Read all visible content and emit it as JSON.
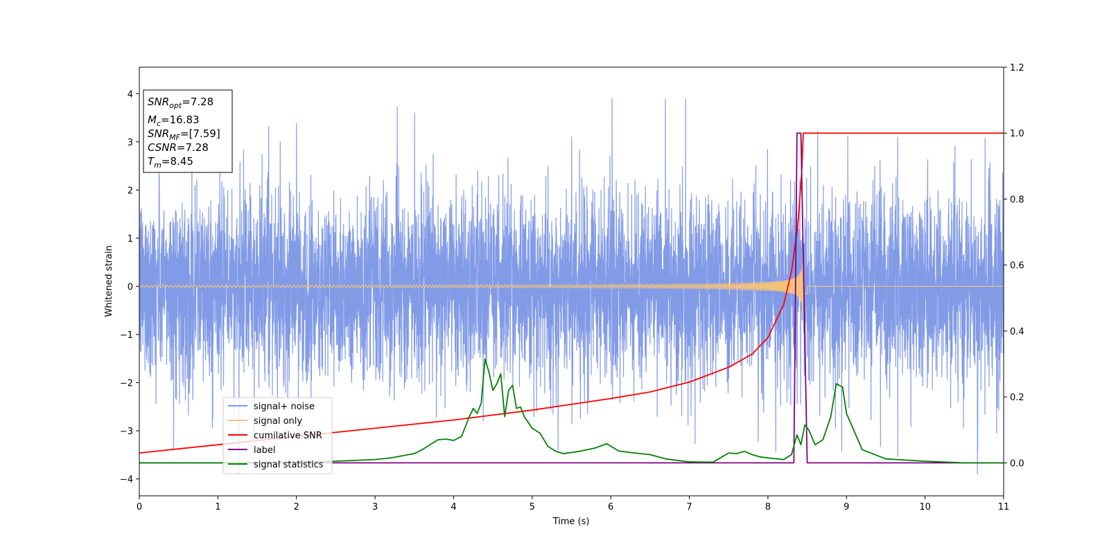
{
  "chart_data": {
    "type": "line",
    "xlabel": "Time (s)",
    "ylabel": "Whitened strain",
    "xlim": [
      0,
      11
    ],
    "ylim_left": [
      -4.35,
      4.55
    ],
    "ylim_right": [
      -0.1,
      1.2
    ],
    "x_ticks": [
      "0",
      "1",
      "2",
      "3",
      "4",
      "5",
      "6",
      "7",
      "8",
      "9",
      "10",
      "11"
    ],
    "y_ticks_left": [
      "−4",
      "−3",
      "−2",
      "−1",
      "0",
      "1",
      "2",
      "3",
      "4"
    ],
    "y_ticks_right": [
      "0.0",
      "0.2",
      "0.4",
      "0.6",
      "0.8",
      "1.0",
      "1.2"
    ],
    "info_box": [
      {
        "base": "SNR",
        "sub": "opt",
        "value": "=7.28"
      },
      {
        "base": "M",
        "sub": "c",
        "value": "=16.83"
      },
      {
        "base": "SNR",
        "sub": "MF",
        "value": "=[7.59]"
      },
      {
        "base": "CSNR",
        "sub": "",
        "value": "=7.28"
      },
      {
        "base": "T",
        "sub": "m",
        "value": "=8.45"
      }
    ],
    "legend_position": "lower-left",
    "series": [
      {
        "name": "signal+ noise",
        "color": "#7b96e6",
        "axis": "left",
        "description_values": {
          "amplitude_range": [
            -3.9,
            3.9
          ],
          "duration": [
            0,
            11
          ]
        }
      },
      {
        "name": "signal only",
        "color": "#f5c27a",
        "axis": "left",
        "chirp": {
          "start_amplitude": 0.02,
          "peak_amplitude": 0.75,
          "merger_time": 8.45,
          "end_time": 8.5
        }
      },
      {
        "name": "cumilative SNR",
        "color": "#ff0000",
        "axis": "right",
        "x": [
          0,
          1,
          2,
          3,
          4,
          5,
          6,
          6.5,
          7,
          7.5,
          7.8,
          8.0,
          8.2,
          8.3,
          8.38,
          8.43,
          8.45,
          11
        ],
        "y": [
          0.03,
          0.055,
          0.08,
          0.105,
          0.13,
          0.16,
          0.195,
          0.215,
          0.245,
          0.29,
          0.33,
          0.38,
          0.48,
          0.58,
          0.72,
          0.88,
          1.0,
          1.0
        ]
      },
      {
        "name": "label",
        "color": "#800080",
        "axis": "right",
        "x": [
          0,
          8.33,
          8.37,
          8.42,
          8.5,
          11
        ],
        "y": [
          0.0,
          0.0,
          1.0,
          1.0,
          0.0,
          0.0
        ]
      },
      {
        "name": "signal statistics",
        "color": "#008000",
        "axis": "right",
        "x": [
          0,
          1,
          2,
          2.5,
          3,
          3.2,
          3.5,
          3.6,
          3.7,
          3.8,
          3.9,
          4.0,
          4.1,
          4.2,
          4.25,
          4.3,
          4.35,
          4.4,
          4.45,
          4.5,
          4.55,
          4.6,
          4.65,
          4.7,
          4.75,
          4.8,
          4.85,
          4.9,
          5.0,
          5.1,
          5.2,
          5.3,
          5.4,
          5.6,
          5.8,
          5.95,
          6.1,
          6.3,
          6.5,
          6.7,
          7.0,
          7.3,
          7.5,
          7.6,
          7.7,
          7.8,
          7.9,
          8.0,
          8.2,
          8.3,
          8.37,
          8.42,
          8.47,
          8.52,
          8.6,
          8.7,
          8.8,
          8.87,
          8.95,
          9.0,
          9.2,
          9.5,
          10.0,
          10.5,
          11
        ],
        "y": [
          0.0,
          0.0,
          0.003,
          0.005,
          0.01,
          0.015,
          0.028,
          0.04,
          0.055,
          0.07,
          0.072,
          0.068,
          0.08,
          0.14,
          0.165,
          0.15,
          0.18,
          0.315,
          0.275,
          0.22,
          0.24,
          0.27,
          0.14,
          0.22,
          0.235,
          0.165,
          0.17,
          0.14,
          0.105,
          0.09,
          0.05,
          0.035,
          0.028,
          0.035,
          0.045,
          0.058,
          0.036,
          0.03,
          0.025,
          0.012,
          0.003,
          0.002,
          0.03,
          0.028,
          0.035,
          0.025,
          0.018,
          0.015,
          0.01,
          0.025,
          0.085,
          0.055,
          0.115,
          0.1,
          0.055,
          0.07,
          0.14,
          0.24,
          0.23,
          0.15,
          0.04,
          0.012,
          0.005,
          0.0,
          0.0
        ]
      }
    ]
  }
}
